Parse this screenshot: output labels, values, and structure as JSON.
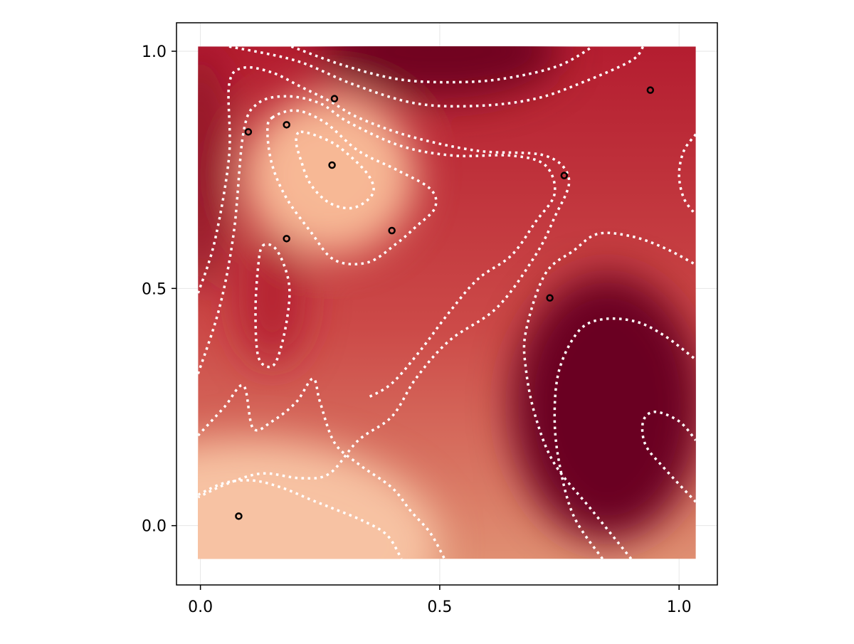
{
  "chart_data": {
    "type": "heatmap",
    "title": "",
    "xlabel": "",
    "ylabel": "",
    "xlim": [
      -0.05,
      1.08
    ],
    "ylim": [
      -0.125,
      1.06
    ],
    "heatmap_extent": {
      "x": [
        -0.005,
        1.035
      ],
      "y": [
        -0.07,
        1.01
      ]
    },
    "colormap": "RdBu (red half)",
    "colors": {
      "light": "#f7c2a3",
      "mid": "#d46a52",
      "red": "#b41d30",
      "dark": "#6a0020",
      "contour": "#ffffff",
      "grid": "#e6e6e6",
      "axis": "#000000"
    },
    "grid": true,
    "legend": "none",
    "x_ticks": [
      {
        "value": 0.0,
        "label": "0.0"
      },
      {
        "value": 0.5,
        "label": "0.5"
      },
      {
        "value": 1.0,
        "label": "1.0"
      }
    ],
    "y_ticks": [
      {
        "value": 0.0,
        "label": "0.0"
      },
      {
        "value": 0.5,
        "label": "0.5"
      },
      {
        "value": 1.0,
        "label": "1.0"
      }
    ],
    "color_blobs": [
      {
        "x": 0.27,
        "y": 0.74,
        "rx": 0.18,
        "ry": 0.17,
        "color": "#f7b895",
        "weight": 1.0
      },
      {
        "x": 0.1,
        "y": -0.04,
        "rx": 0.4,
        "ry": 0.22,
        "color": "#f7c2a3",
        "weight": 1.0
      },
      {
        "x": 0.85,
        "y": 0.25,
        "rx": 0.2,
        "ry": 0.28,
        "color": "#6a0020",
        "weight": 1.0
      },
      {
        "x": 0.5,
        "y": 1.0,
        "rx": 0.25,
        "ry": 0.1,
        "color": "#6a0020",
        "weight": 0.9
      },
      {
        "x": 0.0,
        "y": 0.75,
        "rx": 0.06,
        "ry": 0.25,
        "color": "#8a0a24",
        "weight": 0.8
      },
      {
        "x": 0.15,
        "y": 0.48,
        "rx": 0.07,
        "ry": 0.14,
        "color": "#b41d30",
        "weight": 0.9
      }
    ],
    "contours": [
      {
        "name": "top-dark",
        "closed": false,
        "points": [
          [
            0.19,
            1.01
          ],
          [
            0.3,
            0.97
          ],
          [
            0.42,
            0.94
          ],
          [
            0.55,
            0.935
          ],
          [
            0.65,
            0.945
          ],
          [
            0.75,
            0.97
          ],
          [
            0.82,
            1.01
          ]
        ]
      },
      {
        "name": "top-outer",
        "closed": false,
        "points": [
          [
            0.06,
            1.01
          ],
          [
            0.2,
            0.98
          ],
          [
            0.32,
            0.93
          ],
          [
            0.45,
            0.89
          ],
          [
            0.58,
            0.885
          ],
          [
            0.7,
            0.9
          ],
          [
            0.8,
            0.935
          ],
          [
            0.9,
            0.98
          ],
          [
            0.925,
            1.01
          ]
        ]
      },
      {
        "name": "left-outer",
        "closed": false,
        "points": [
          [
            -0.005,
            0.49
          ],
          [
            0.03,
            0.6
          ],
          [
            0.06,
            0.78
          ],
          [
            0.06,
            0.93
          ],
          [
            0.09,
            0.965
          ],
          [
            0.15,
            0.955
          ],
          [
            0.21,
            0.925
          ],
          [
            0.27,
            0.895
          ],
          [
            0.33,
            0.86
          ],
          [
            0.44,
            0.82
          ],
          [
            0.58,
            0.79
          ],
          [
            0.72,
            0.78
          ],
          [
            0.77,
            0.73
          ],
          [
            0.74,
            0.65
          ],
          [
            0.7,
            0.57
          ],
          [
            0.62,
            0.46
          ],
          [
            0.52,
            0.39
          ],
          [
            0.45,
            0.31
          ],
          [
            0.4,
            0.23
          ],
          [
            0.33,
            0.18
          ],
          [
            0.27,
            0.11
          ],
          [
            0.21,
            0.1
          ],
          [
            0.13,
            0.11
          ],
          [
            0.06,
            0.09
          ],
          [
            -0.005,
            0.06
          ]
        ]
      },
      {
        "name": "left-upper",
        "closed": false,
        "points": [
          [
            -0.005,
            0.32
          ],
          [
            0.04,
            0.46
          ],
          [
            0.07,
            0.62
          ],
          [
            0.09,
            0.83
          ],
          [
            0.12,
            0.89
          ],
          [
            0.18,
            0.905
          ],
          [
            0.25,
            0.89
          ],
          [
            0.31,
            0.85
          ],
          [
            0.42,
            0.8
          ],
          [
            0.53,
            0.78
          ],
          [
            0.65,
            0.78
          ],
          [
            0.72,
            0.76
          ],
          [
            0.74,
            0.7
          ],
          [
            0.7,
            0.64
          ],
          [
            0.65,
            0.57
          ],
          [
            0.58,
            0.52
          ],
          [
            0.52,
            0.45
          ],
          [
            0.46,
            0.37
          ],
          [
            0.4,
            0.3
          ],
          [
            0.35,
            0.27
          ]
        ]
      },
      {
        "name": "left-inner",
        "closed": false,
        "points": [
          [
            -0.005,
            0.19
          ],
          [
            0.05,
            0.25
          ],
          [
            0.09,
            0.295
          ],
          [
            0.11,
            0.205
          ],
          [
            0.15,
            0.22
          ],
          [
            0.2,
            0.26
          ],
          [
            0.235,
            0.31
          ],
          [
            0.25,
            0.26
          ],
          [
            0.28,
            0.175
          ],
          [
            0.33,
            0.13
          ],
          [
            0.4,
            0.08
          ],
          [
            0.44,
            0.03
          ],
          [
            0.48,
            -0.015
          ],
          [
            0.51,
            -0.07
          ]
        ]
      },
      {
        "name": "bottom-left",
        "closed": false,
        "points": [
          [
            -0.005,
            0.065
          ],
          [
            0.05,
            0.09
          ],
          [
            0.11,
            0.095
          ],
          [
            0.17,
            0.08
          ],
          [
            0.23,
            0.055
          ],
          [
            0.28,
            0.035
          ],
          [
            0.34,
            0.01
          ],
          [
            0.39,
            -0.02
          ],
          [
            0.42,
            -0.07
          ]
        ]
      },
      {
        "name": "mid-blob-outer",
        "closed": true,
        "points": [
          [
            0.15,
            0.86
          ],
          [
            0.2,
            0.875
          ],
          [
            0.26,
            0.85
          ],
          [
            0.33,
            0.79
          ],
          [
            0.41,
            0.75
          ],
          [
            0.48,
            0.71
          ],
          [
            0.49,
            0.67
          ],
          [
            0.45,
            0.63
          ],
          [
            0.41,
            0.595
          ],
          [
            0.35,
            0.555
          ],
          [
            0.28,
            0.56
          ],
          [
            0.23,
            0.62
          ],
          [
            0.18,
            0.69
          ],
          [
            0.15,
            0.76
          ],
          [
            0.14,
            0.83
          ]
        ]
      },
      {
        "name": "mid-blob-inner",
        "closed": true,
        "points": [
          [
            0.21,
            0.83
          ],
          [
            0.26,
            0.815
          ],
          [
            0.3,
            0.79
          ],
          [
            0.35,
            0.74
          ],
          [
            0.36,
            0.7
          ],
          [
            0.32,
            0.67
          ],
          [
            0.27,
            0.68
          ],
          [
            0.23,
            0.72
          ],
          [
            0.21,
            0.77
          ],
          [
            0.2,
            0.81
          ]
        ]
      },
      {
        "name": "left-oval",
        "closed": true,
        "points": [
          [
            0.13,
            0.59
          ],
          [
            0.16,
            0.58
          ],
          [
            0.185,
            0.51
          ],
          [
            0.18,
            0.43
          ],
          [
            0.16,
            0.35
          ],
          [
            0.14,
            0.335
          ],
          [
            0.12,
            0.36
          ],
          [
            0.115,
            0.45
          ],
          [
            0.12,
            0.54
          ]
        ]
      },
      {
        "name": "right-edge",
        "closed": false,
        "points": [
          [
            1.035,
            0.825
          ],
          [
            1.01,
            0.79
          ],
          [
            1.0,
            0.74
          ],
          [
            1.01,
            0.69
          ],
          [
            1.035,
            0.655
          ]
        ]
      },
      {
        "name": "right-outer",
        "closed": false,
        "points": [
          [
            0.9,
            -0.07
          ],
          [
            0.82,
            0.03
          ],
          [
            0.74,
            0.13
          ],
          [
            0.7,
            0.23
          ],
          [
            0.68,
            0.33
          ],
          [
            0.68,
            0.41
          ],
          [
            0.72,
            0.53
          ],
          [
            0.78,
            0.58
          ],
          [
            0.83,
            0.615
          ],
          [
            0.9,
            0.61
          ],
          [
            0.97,
            0.585
          ],
          [
            1.035,
            0.55
          ]
        ]
      },
      {
        "name": "right-mid",
        "closed": false,
        "points": [
          [
            0.84,
            -0.07
          ],
          [
            0.78,
            0.02
          ],
          [
            0.75,
            0.13
          ],
          [
            0.74,
            0.23
          ],
          [
            0.75,
            0.33
          ],
          [
            0.79,
            0.41
          ],
          [
            0.84,
            0.435
          ],
          [
            0.91,
            0.43
          ],
          [
            0.97,
            0.4
          ],
          [
            1.035,
            0.35
          ]
        ]
      },
      {
        "name": "right-inner",
        "closed": false,
        "points": [
          [
            1.035,
            0.05
          ],
          [
            0.97,
            0.12
          ],
          [
            0.93,
            0.17
          ],
          [
            0.925,
            0.22
          ],
          [
            0.95,
            0.24
          ],
          [
            1.0,
            0.22
          ],
          [
            1.035,
            0.18
          ]
        ]
      }
    ],
    "points": [
      {
        "x": 0.275,
        "y": 0.76
      },
      {
        "x": 0.18,
        "y": 0.845
      },
      {
        "x": 0.1,
        "y": 0.83
      },
      {
        "x": 0.28,
        "y": 0.9
      },
      {
        "x": 0.18,
        "y": 0.605
      },
      {
        "x": 0.4,
        "y": 0.622
      },
      {
        "x": 0.76,
        "y": 0.738
      },
      {
        "x": 0.94,
        "y": 0.918
      },
      {
        "x": 0.73,
        "y": 0.48
      },
      {
        "x": 0.08,
        "y": 0.02
      }
    ]
  }
}
